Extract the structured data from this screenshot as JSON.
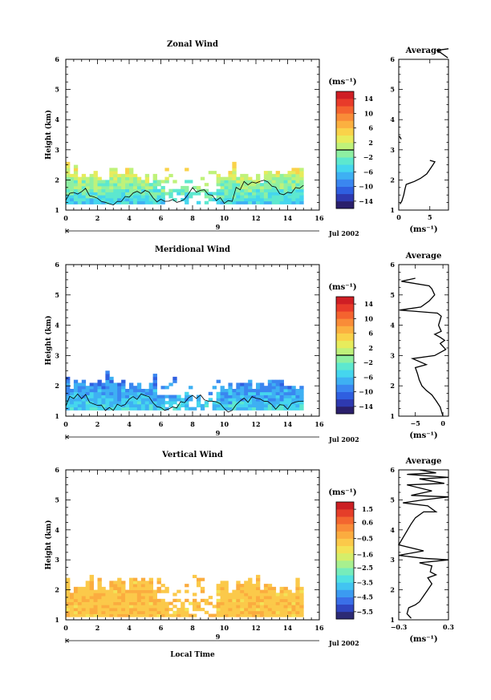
{
  "chart_data": [
    {
      "type": "heatmap",
      "title": "Zonal Wind",
      "ylabel": "Height (km)",
      "xlabel": "",
      "xlim": [
        0,
        16
      ],
      "ylim": [
        1,
        6
      ],
      "x_ticks": [
        "0",
        "2",
        "4",
        "6",
        "8",
        "10",
        "12",
        "14",
        "16"
      ],
      "y_ticks": [
        "1",
        "2",
        "3",
        "4",
        "5",
        "6"
      ],
      "date_day": "9",
      "date_label": "Jul 2002",
      "colorbar": {
        "unit_label": "(ms⁻¹)",
        "range": [
          -16,
          16
        ],
        "tick_values": [
          14,
          10,
          6,
          2,
          -2,
          -6,
          -10,
          -14
        ],
        "tick_labels": [
          "14",
          "10",
          "6",
          "2",
          "−2",
          "−6",
          "−10",
          "−14"
        ]
      },
      "data_coverage": {
        "x_range": [
          0,
          15
        ],
        "y_range": [
          1.2,
          2.6
        ]
      },
      "profile": {
        "title": "Average",
        "xlabel": "(ms⁻¹)",
        "xlim": [
          0,
          8
        ],
        "x_ticks": [
          "0",
          "5"
        ],
        "x_tick_values": [
          0,
          5
        ],
        "ylim": [
          1,
          6
        ],
        "y_ticks": [
          "1",
          "2",
          "3",
          "4",
          "5",
          "6"
        ],
        "points": [
          [
            0.2,
            1.2
          ],
          [
            0.5,
            1.3
          ],
          [
            0.8,
            1.5
          ],
          [
            1.0,
            1.7
          ],
          [
            1.2,
            1.85
          ],
          [
            2.5,
            1.95
          ],
          [
            3.5,
            2.05
          ],
          [
            4.5,
            2.2
          ],
          [
            5.0,
            2.35
          ],
          [
            5.5,
            2.5
          ],
          [
            5.8,
            2.6
          ],
          [
            5.0,
            2.65
          ]
        ],
        "points_upper": [
          [
            7.9,
            6.05
          ],
          [
            6.2,
            6.3
          ],
          [
            8.0,
            6.35
          ]
        ],
        "points_mid": [
          [
            0.4,
            3.35
          ],
          [
            0.1,
            3.45
          ]
        ]
      }
    },
    {
      "type": "heatmap",
      "title": "Meridional Wind",
      "ylabel": "Height (km)",
      "xlabel": "",
      "xlim": [
        0,
        16
      ],
      "ylim": [
        1,
        6
      ],
      "x_ticks": [
        "0",
        "2",
        "4",
        "6",
        "8",
        "10",
        "12",
        "14",
        "16"
      ],
      "y_ticks": [
        "1",
        "2",
        "3",
        "4",
        "5",
        "6"
      ],
      "date_day": "9",
      "date_label": "Jul 2002",
      "colorbar": {
        "unit_label": "(ms⁻¹)",
        "range": [
          -16,
          16
        ],
        "tick_values": [
          14,
          10,
          6,
          2,
          -2,
          -6,
          -10,
          -14
        ],
        "tick_labels": [
          "14",
          "10",
          "6",
          "2",
          "−2",
          "−6",
          "−10",
          "−14"
        ]
      },
      "data_coverage": {
        "x_range": [
          0,
          15
        ],
        "y_range": [
          1.2,
          2.5
        ]
      },
      "profile": {
        "title": "Average",
        "xlabel": "(ms⁻¹)",
        "xlim": [
          -8,
          1
        ],
        "x_ticks": [
          "−5",
          "0"
        ],
        "x_tick_values": [
          -5,
          0
        ],
        "ylim": [
          1,
          6
        ],
        "y_ticks": [
          "1",
          "2",
          "3",
          "4",
          "5",
          "6"
        ],
        "points": [
          [
            0.0,
            1.0
          ],
          [
            -0.5,
            1.3
          ],
          [
            -1.2,
            1.5
          ],
          [
            -2.0,
            1.7
          ],
          [
            -3.0,
            1.85
          ],
          [
            -3.8,
            2.0
          ],
          [
            -4.3,
            2.2
          ],
          [
            -4.6,
            2.4
          ],
          [
            -5.0,
            2.6
          ],
          [
            -3.0,
            2.7
          ],
          [
            -5.5,
            2.9
          ],
          [
            -1.5,
            3.0
          ],
          [
            0.5,
            3.2
          ],
          [
            -0.5,
            3.4
          ],
          [
            0.3,
            3.5
          ],
          [
            -0.5,
            3.6
          ],
          [
            -1.5,
            3.7
          ],
          [
            -0.3,
            3.8
          ],
          [
            -0.8,
            4.0
          ],
          [
            -0.3,
            4.3
          ],
          [
            -1.0,
            4.4
          ],
          [
            -7.8,
            4.5
          ],
          [
            -4.0,
            4.6
          ],
          [
            -2.5,
            4.8
          ],
          [
            -1.5,
            5.0
          ],
          [
            -2.0,
            5.2
          ],
          [
            -2.5,
            5.3
          ],
          [
            -7.5,
            5.45
          ],
          [
            -5.0,
            5.55
          ]
        ]
      }
    },
    {
      "type": "heatmap",
      "title": "Vertical Wind",
      "ylabel": "Height (km)",
      "xlabel": "Local Time",
      "xlim": [
        0,
        16
      ],
      "ylim": [
        1,
        6
      ],
      "x_ticks": [
        "0",
        "2",
        "4",
        "6",
        "8",
        "10",
        "12",
        "14",
        "16"
      ],
      "y_ticks": [
        "1",
        "2",
        "3",
        "4",
        "5",
        "6"
      ],
      "date_day": "9",
      "date_label": "Jul 2002",
      "colorbar": {
        "unit_label": "(ms⁻¹)",
        "range": [
          -6.0,
          2.0
        ],
        "tick_values": [
          1.5,
          0.6,
          -0.5,
          -1.6,
          -2.5,
          -3.5,
          -4.5,
          -5.5
        ],
        "tick_labels": [
          "1.5",
          "0.6",
          "−0.5",
          "−1.6",
          "−2.5",
          "−3.5",
          "−4.5",
          "−5.5"
        ]
      },
      "data_coverage": {
        "x_range": [
          0,
          15
        ],
        "y_range": [
          1.1,
          2.6
        ]
      },
      "profile": {
        "title": "Average",
        "xlabel": "(ms⁻¹)",
        "xlim": [
          -0.3,
          0.3
        ],
        "x_ticks": [
          "−0.3",
          "0.3"
        ],
        "x_tick_values": [
          -0.3,
          0.3
        ],
        "ylim": [
          1,
          6
        ],
        "y_ticks": [
          "1",
          "2",
          "3",
          "4",
          "5",
          "6"
        ],
        "points": [
          [
            -0.15,
            1.05
          ],
          [
            -0.2,
            1.2
          ],
          [
            -0.18,
            1.4
          ],
          [
            -0.1,
            1.5
          ],
          [
            -0.05,
            1.6
          ],
          [
            0.0,
            1.8
          ],
          [
            0.05,
            2.0
          ],
          [
            0.1,
            2.2
          ],
          [
            0.05,
            2.4
          ],
          [
            0.15,
            2.5
          ],
          [
            0.08,
            2.6
          ],
          [
            0.1,
            2.8
          ],
          [
            -0.05,
            2.9
          ],
          [
            0.3,
            3.0
          ],
          [
            0.0,
            3.05
          ],
          [
            -0.3,
            3.15
          ],
          [
            0.0,
            3.3
          ],
          [
            -0.3,
            3.5
          ],
          [
            -0.15,
            4.2
          ],
          [
            -0.1,
            4.4
          ],
          [
            0.0,
            4.6
          ],
          [
            0.15,
            4.6
          ],
          [
            0.05,
            4.8
          ],
          [
            -0.25,
            4.9
          ],
          [
            0.0,
            5.0
          ],
          [
            0.3,
            5.1
          ],
          [
            -0.15,
            5.15
          ],
          [
            0.1,
            5.3
          ],
          [
            -0.2,
            5.5
          ],
          [
            0.25,
            5.55
          ],
          [
            -0.05,
            5.7
          ],
          [
            0.3,
            5.75
          ],
          [
            -0.2,
            5.85
          ],
          [
            0.15,
            5.9
          ],
          [
            -0.05,
            6.0
          ]
        ]
      }
    }
  ]
}
